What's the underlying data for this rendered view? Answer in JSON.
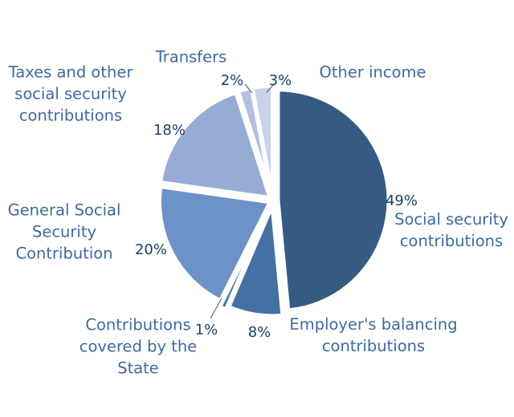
{
  "chart_data": {
    "type": "pie",
    "title": "",
    "slices": [
      {
        "label": "Social security contributions",
        "label_lines": [
          "Social security",
          "contributions"
        ],
        "value": 49,
        "value_label": "49%",
        "color": "#355a84"
      },
      {
        "label": "Employer's balancing contributions",
        "label_lines": [
          "Employer's balancing",
          "contributions"
        ],
        "value": 8,
        "value_label": "8%",
        "color": "#4470a4"
      },
      {
        "label": "Contributions covered by the State",
        "label_lines": [
          "Contributions",
          "covered by the",
          "State"
        ],
        "value": 1,
        "value_label": "1%",
        "color": "#4a79b2"
      },
      {
        "label": "General Social Security Contribution",
        "label_lines": [
          "General Social",
          "Security",
          "Contribution"
        ],
        "value": 20,
        "value_label": "20%",
        "color": "#6c92c8"
      },
      {
        "label": "Taxes and other social security contributions",
        "label_lines": [
          "Taxes and other",
          "social security",
          "contributions"
        ],
        "value": 18,
        "value_label": "18%",
        "color": "#97acd4"
      },
      {
        "label": "Transfers",
        "label_lines": [
          "Transfers"
        ],
        "value": 2,
        "value_label": "2%",
        "color": "#b3c0de"
      },
      {
        "label": "Other income",
        "label_lines": [
          "Other income"
        ],
        "value": 3,
        "value_label": "3%",
        "color": "#c9d2e8"
      }
    ]
  }
}
